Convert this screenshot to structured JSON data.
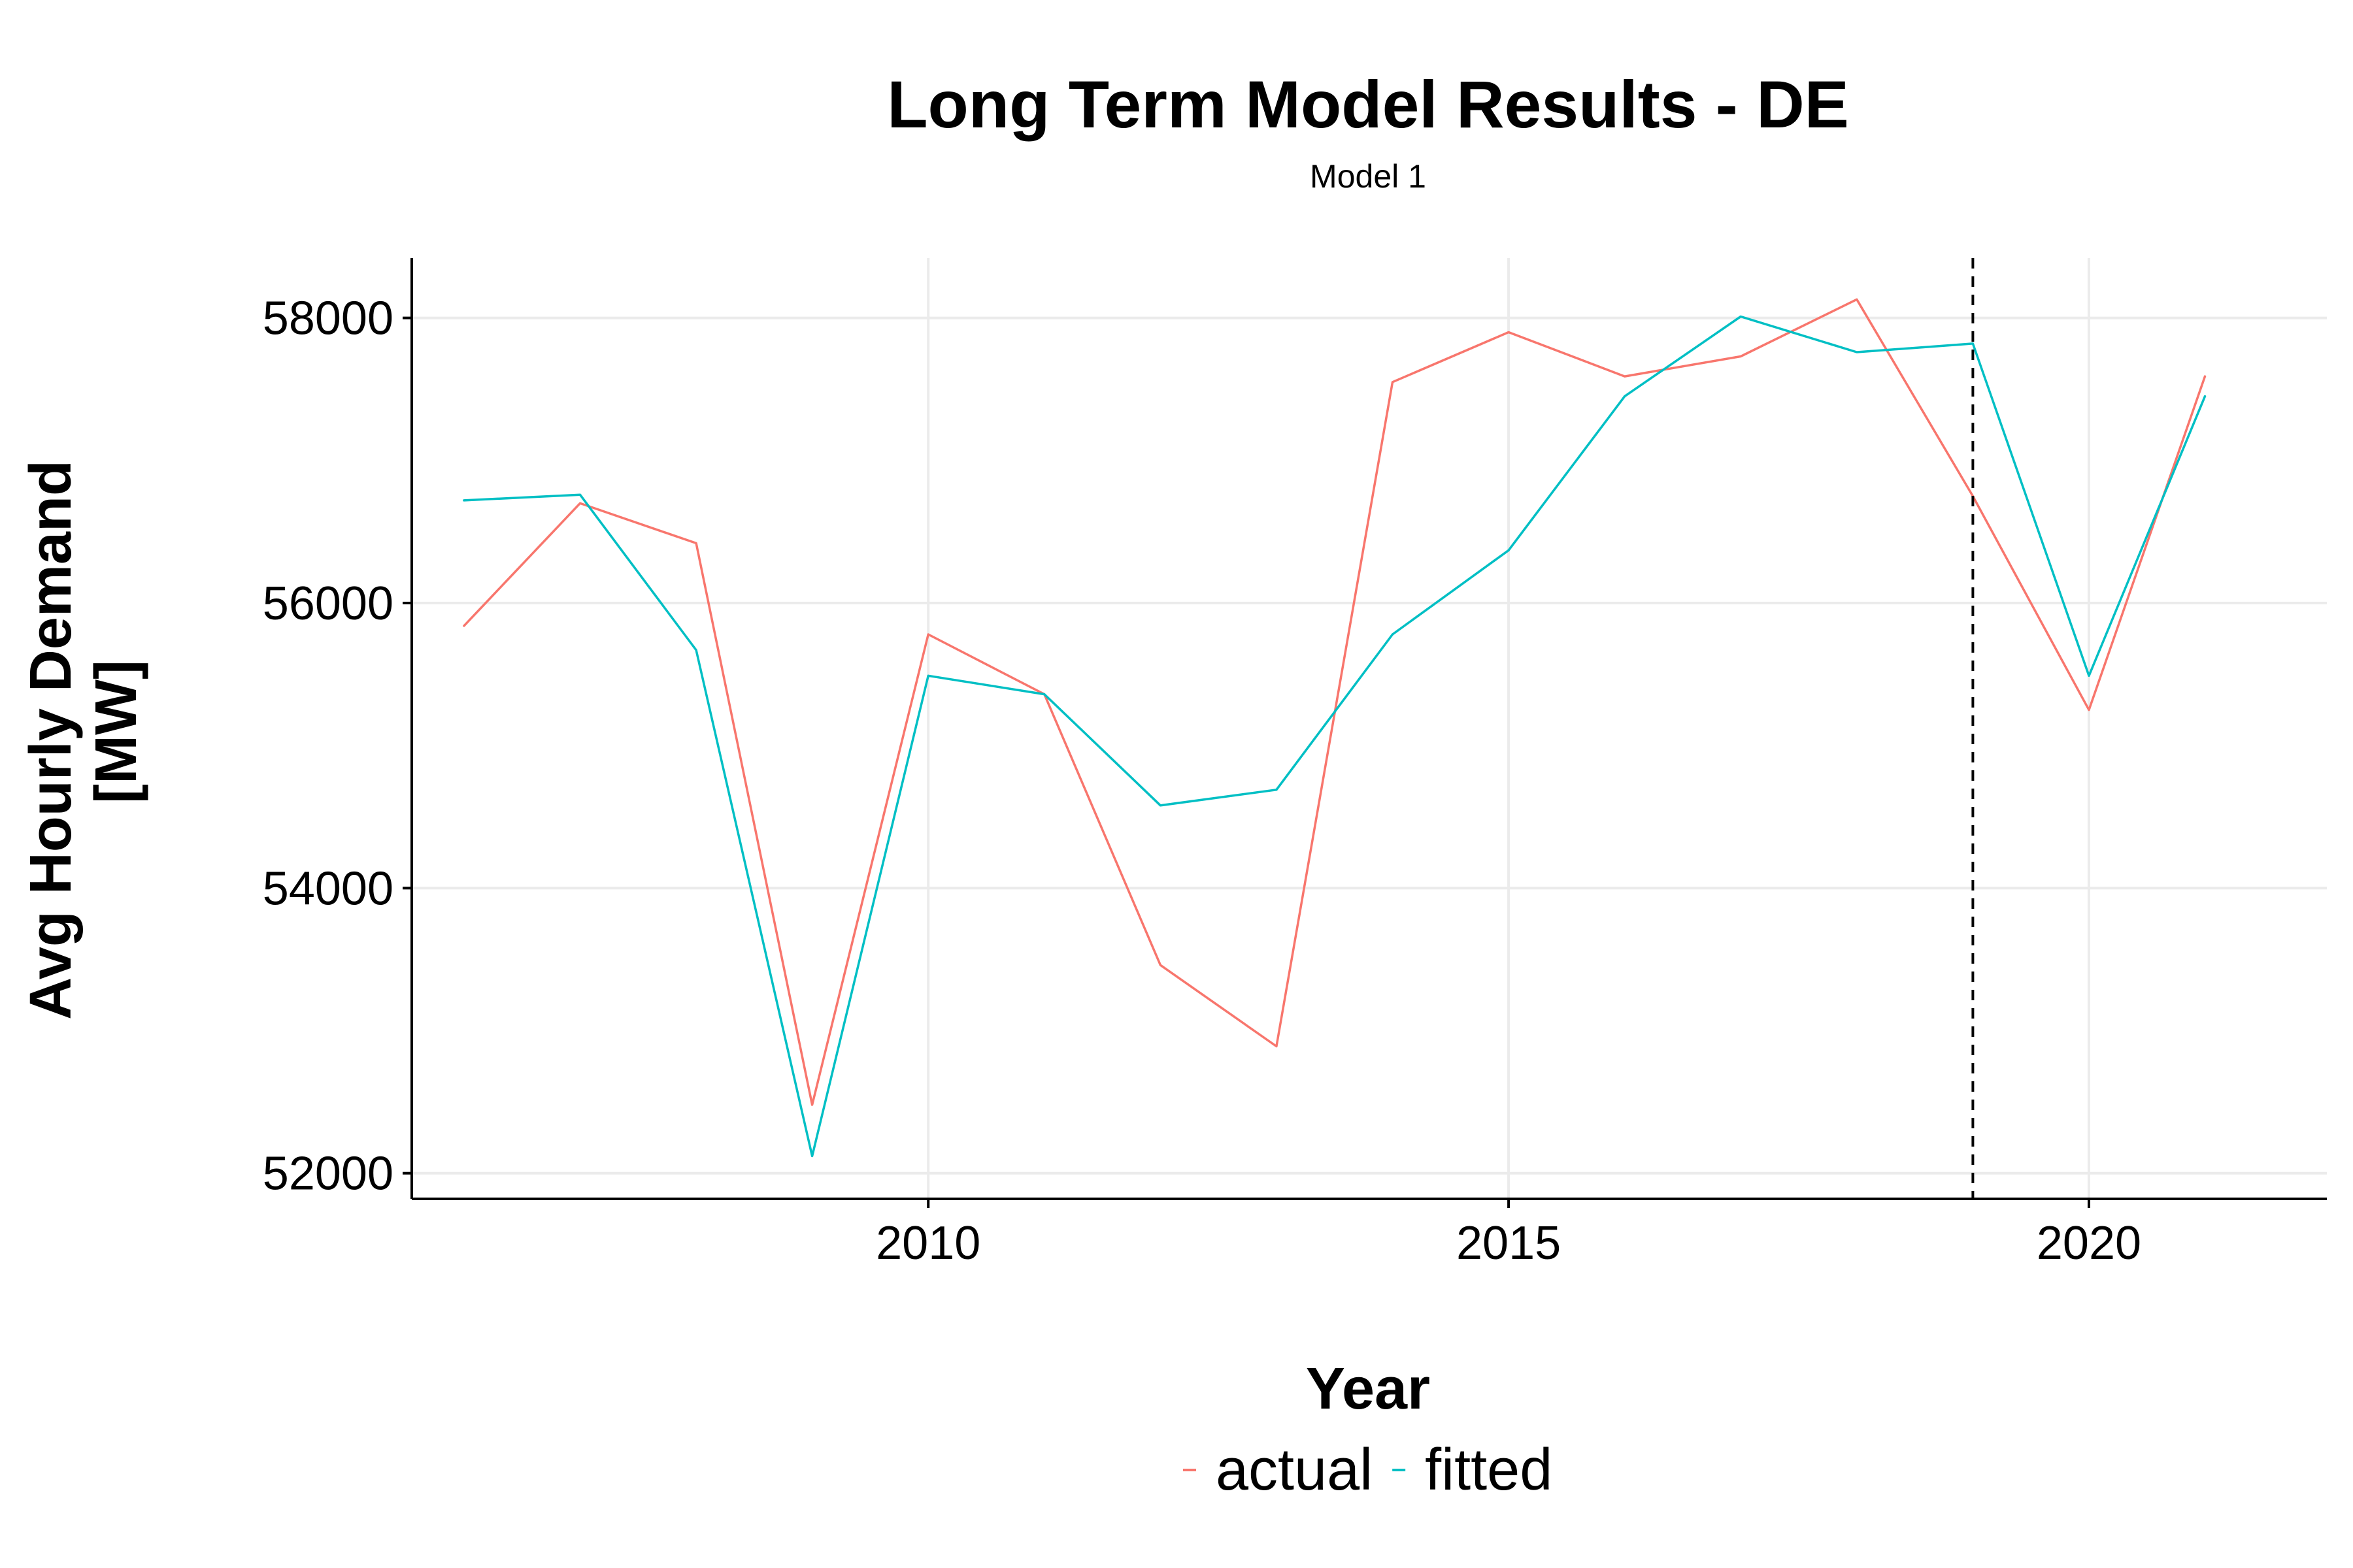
{
  "chart_data": {
    "type": "line",
    "title": "Long Term Model Results - DE",
    "subtitle": "Model 1",
    "xlabel": "Year",
    "ylabel": [
      "Avg Hourly Demand",
      "[MW]"
    ],
    "xlim": [
      2005.55,
      2022.05
    ],
    "ylim": [
      51820,
      58420
    ],
    "x_ticks": [
      2010,
      2015,
      2020
    ],
    "x_tick_labels": [
      "2010",
      "2015",
      "2020"
    ],
    "y_ticks": [
      52000,
      54000,
      56000,
      58000
    ],
    "y_tick_labels": [
      "52000",
      "54000",
      "56000",
      "58000"
    ],
    "grid": true,
    "legend_position": "bottom",
    "vline": {
      "x": 2019,
      "style": "dashed"
    },
    "x": [
      2006,
      2007,
      2008,
      2009,
      2010,
      2011,
      2012,
      2013,
      2014,
      2015,
      2016,
      2017,
      2018,
      2019,
      2020,
      2021
    ],
    "series": [
      {
        "name": "actual",
        "color": "#F8766D",
        "values": [
          55840,
          56700,
          56420,
          52480,
          55780,
          55360,
          53460,
          52890,
          57550,
          57900,
          57590,
          57730,
          58130,
          56750,
          55250,
          57590
        ]
      },
      {
        "name": "fitted",
        "color": "#00BFC4",
        "values": [
          56720,
          56760,
          55670,
          52120,
          55490,
          55360,
          54580,
          54690,
          55780,
          56370,
          57450,
          58010,
          57760,
          57820,
          55490,
          57450
        ]
      }
    ]
  }
}
